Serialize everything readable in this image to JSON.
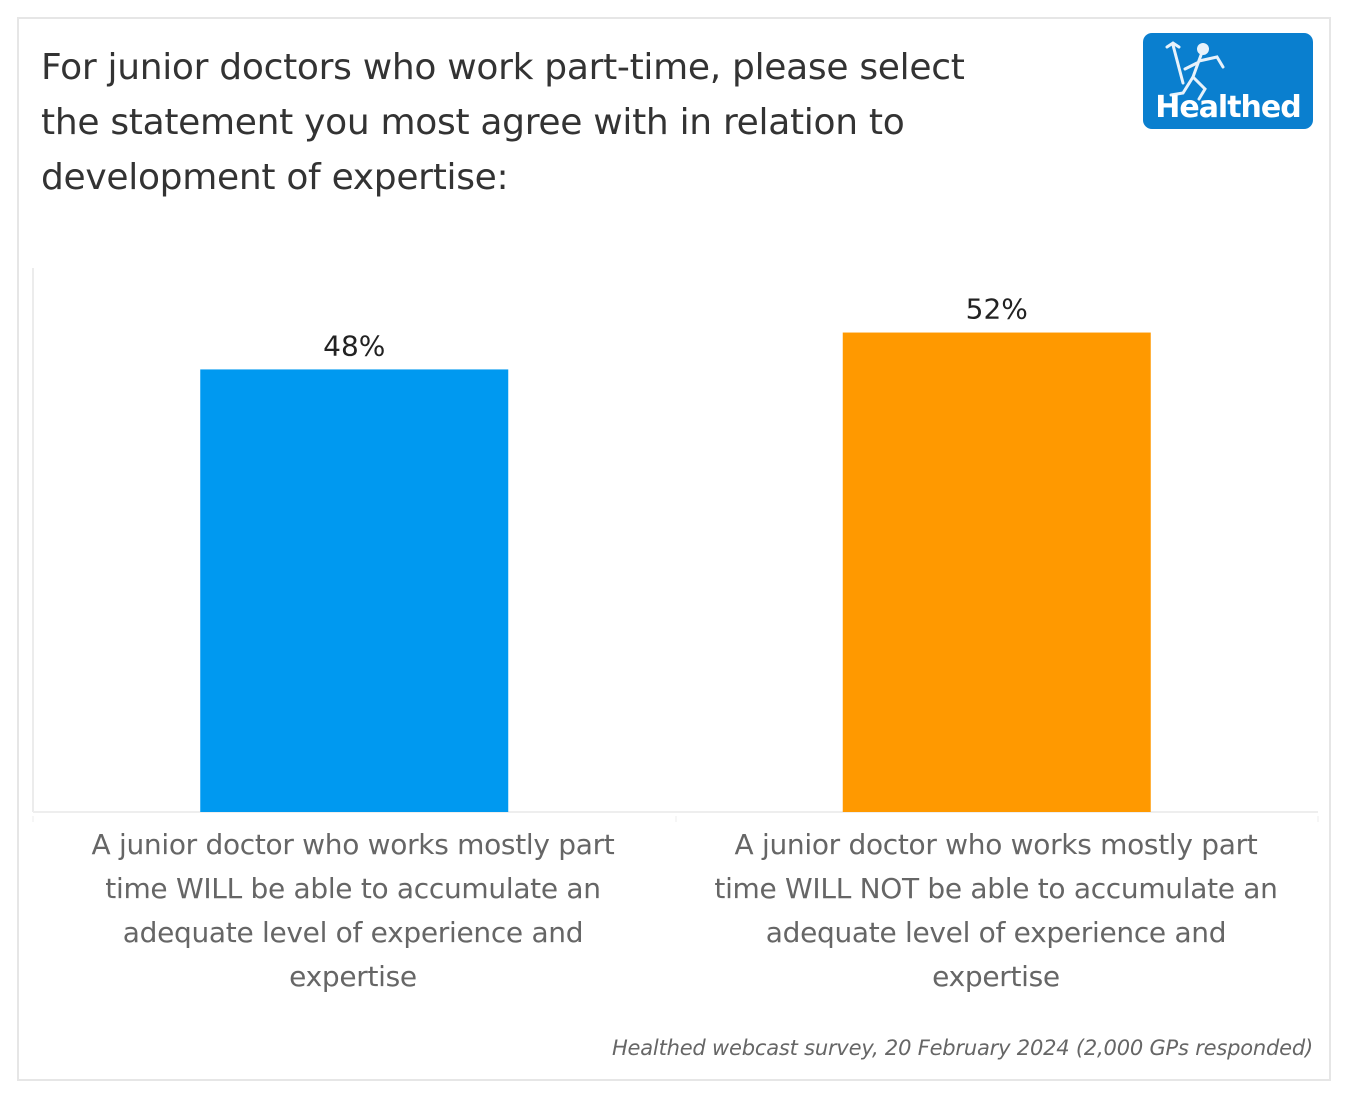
{
  "title": "For junior doctors who work part-time, please select the statement you most agree with in relation to development of expertise:",
  "title_lines": [
    "For junior doctors who work part-time, please select",
    "the statement you most agree with in relation to",
    "development of expertise:"
  ],
  "logo": {
    "text": "Healthed",
    "icon": "running-figure-with-caduceus-icon",
    "color": "#0a7fcf"
  },
  "footnote": "Healthed webcast survey, 20 February 2024 (2,000 GPs responded)",
  "chart_data": {
    "type": "bar",
    "title": "For junior doctors who work part-time, please select the statement you most agree with in relation to development of expertise:",
    "xlabel": "",
    "ylabel": "",
    "ylim": [
      0,
      59
    ],
    "grid": false,
    "legend": "none",
    "categories": [
      "A junior doctor who works mostly part time WILL be able to accumulate an adequate level of experience and expertise",
      "A junior doctor who works mostly part time WILL NOT be able to accumulate an adequate level of experience and expertise"
    ],
    "category_lines": [
      [
        "A junior doctor who works mostly part",
        "time WILL be able to accumulate an",
        "adequate level of experience and",
        "expertise"
      ],
      [
        "A junior doctor who works mostly part",
        "time WILL NOT be able to accumulate an",
        "adequate level of experience and",
        "expertise"
      ]
    ],
    "values": [
      48,
      52
    ],
    "value_labels": [
      "48%",
      "52%"
    ],
    "colors": [
      "#0099f0",
      "#ff9900"
    ],
    "unit": "%"
  }
}
